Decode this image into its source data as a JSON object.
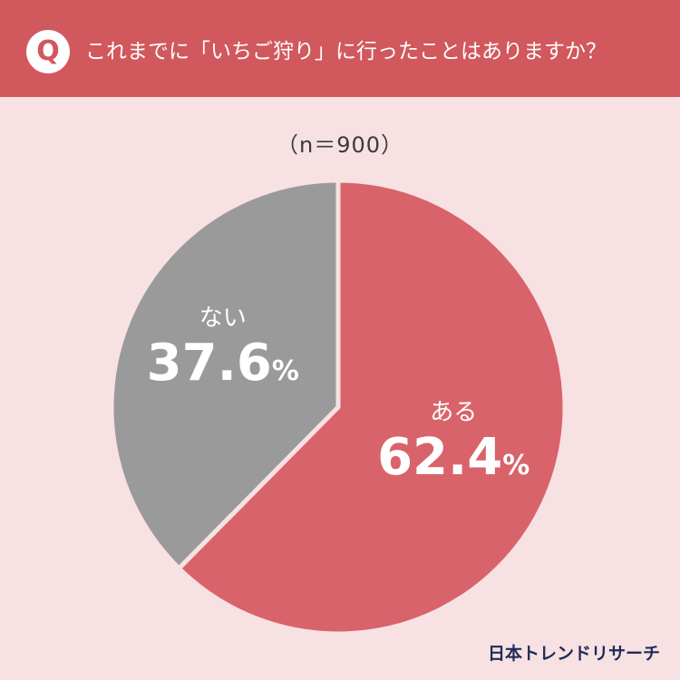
{
  "header": {
    "badge": "Q",
    "question": "これまでに「いちご狩り」に行ったことはありますか？"
  },
  "sample": "（n＝900）",
  "brand": "日本トレンドリサーチ",
  "colors": {
    "header_bg": "#d1585d",
    "page_bg": "#f7e1e2",
    "yes": "#d9636a",
    "no": "#9a9a9a"
  },
  "chart_data": {
    "type": "pie",
    "title": "これまでに「いちご狩り」に行ったことはありますか？",
    "n": 900,
    "slices": [
      {
        "label": "ある",
        "value": 62.4,
        "display": "62.4",
        "unit": "%",
        "color": "#d9636a"
      },
      {
        "label": "ない",
        "value": 37.6,
        "display": "37.6",
        "unit": "%",
        "color": "#9a9a9a"
      }
    ],
    "start": "12 o'clock",
    "direction": "clockwise"
  }
}
